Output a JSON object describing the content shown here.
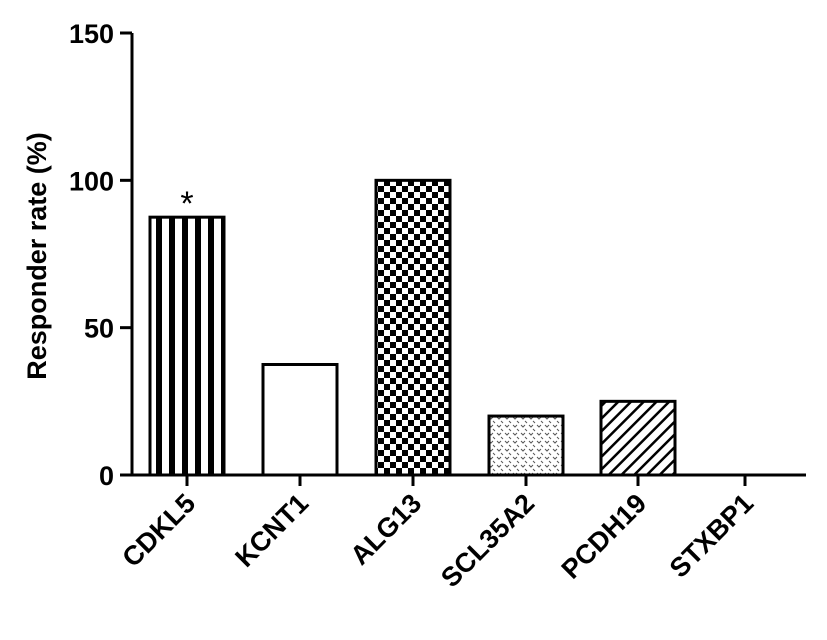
{
  "chart_data": {
    "type": "bar",
    "title": "",
    "xlabel": "",
    "ylabel": "Responder rate (%)",
    "ylim": [
      0,
      150
    ],
    "yticks": [
      0,
      50,
      100,
      150
    ],
    "grid": false,
    "categories": [
      "CDKL5",
      "KCNT1",
      "ALG13",
      "SCL35A2",
      "PCDH19",
      "STXBP1"
    ],
    "values": [
      87.5,
      37.5,
      100,
      20,
      25,
      0
    ],
    "patterns": [
      "vertical-stripes",
      "solid-white",
      "checkerboard",
      "dotted",
      "diagonal-hatch",
      "none"
    ],
    "annotations": [
      {
        "category": "CDKL5",
        "text": "*"
      }
    ]
  }
}
